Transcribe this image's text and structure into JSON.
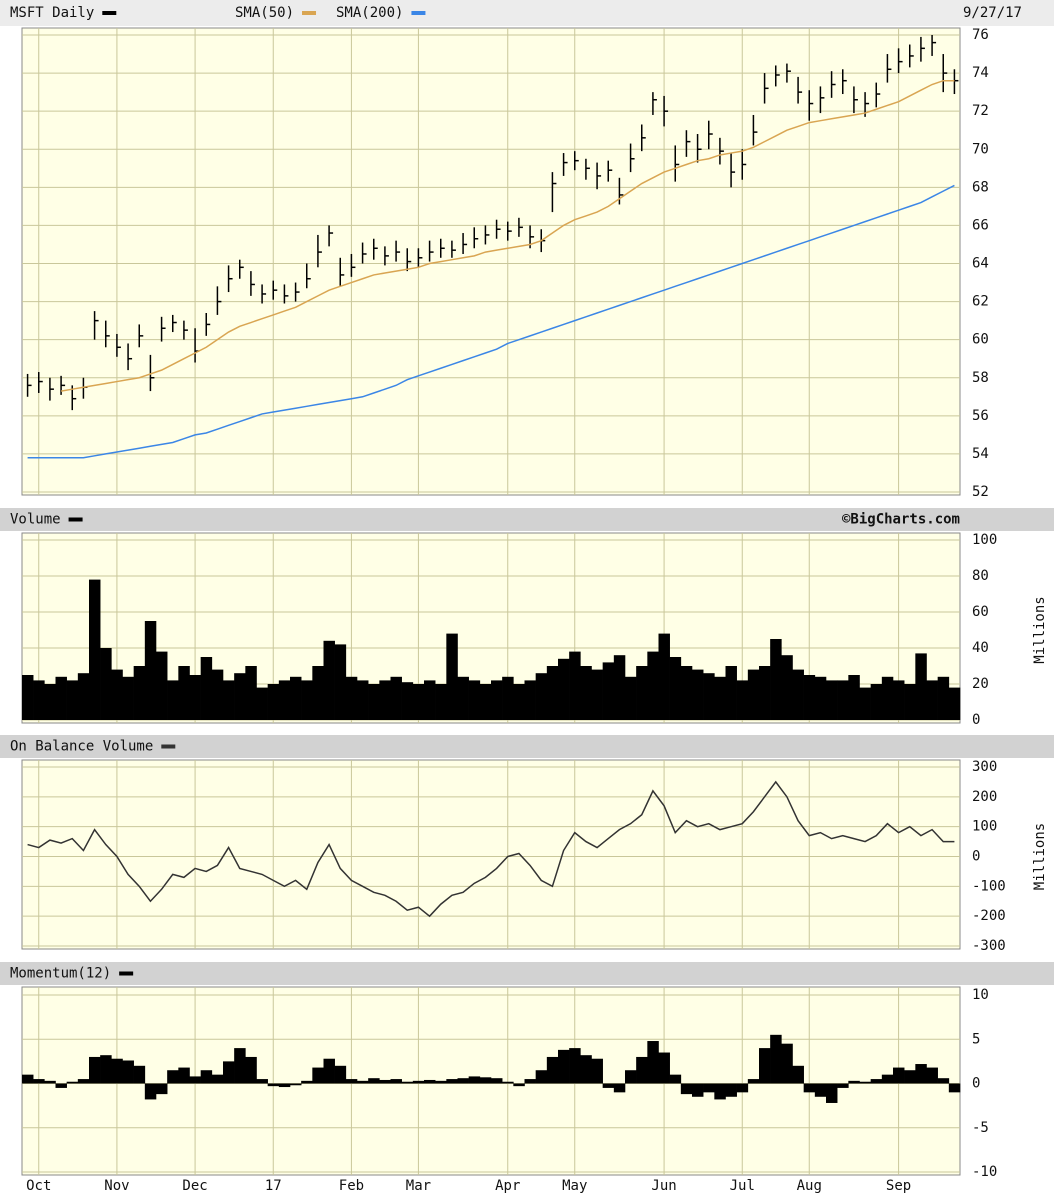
{
  "chart_data": [
    {
      "type": "ohlc",
      "annotation": "9/27/17",
      "ylim": [
        52,
        76
      ],
      "yticks": [
        52,
        54,
        56,
        58,
        60,
        62,
        64,
        66,
        68,
        70,
        72,
        74,
        76
      ],
      "grid": true,
      "series": [
        {
          "name": "MSFT Daily",
          "color": "#000000",
          "values": [
            57.6,
            57.8,
            57.4,
            57.6,
            56.9,
            57.5,
            61.0,
            60.2,
            59.6,
            59.0,
            60.2,
            58.0,
            60.6,
            60.9,
            60.5,
            59.4,
            60.8,
            62.0,
            63.2,
            63.8,
            62.9,
            62.4,
            62.6,
            62.3,
            62.5,
            63.2,
            64.6,
            65.6,
            63.4,
            63.8,
            64.5,
            64.8,
            64.4,
            64.6,
            64.1,
            64.3,
            64.6,
            64.8,
            64.7,
            65.0,
            65.3,
            65.5,
            65.8,
            65.7,
            65.9,
            65.4,
            65.2,
            68.2,
            69.3,
            69.4,
            69.0,
            68.6,
            68.9,
            67.6,
            69.5,
            70.6,
            72.6,
            72.0,
            69.2,
            70.4,
            70.0,
            70.8,
            69.9,
            68.8,
            69.2,
            70.9,
            73.2,
            73.9,
            74.1,
            73.0,
            72.4,
            72.7,
            73.4,
            73.6,
            72.6,
            72.4,
            72.9,
            74.2,
            74.6,
            74.9,
            75.3,
            75.6,
            74.0,
            73.6
          ],
          "high": [
            58.2,
            58.3,
            58.0,
            58.1,
            57.6,
            58.0,
            61.5,
            61.0,
            60.3,
            59.8,
            60.8,
            59.2,
            61.2,
            61.3,
            61.0,
            60.6,
            61.4,
            62.8,
            63.9,
            64.2,
            63.6,
            62.9,
            63.1,
            62.9,
            63.0,
            64.0,
            65.5,
            66.0,
            64.3,
            64.5,
            65.1,
            65.3,
            64.9,
            65.2,
            64.8,
            64.8,
            65.2,
            65.3,
            65.2,
            65.6,
            65.9,
            66.0,
            66.3,
            66.2,
            66.4,
            66.0,
            65.8,
            68.8,
            69.8,
            69.9,
            69.5,
            69.3,
            69.4,
            68.5,
            70.3,
            71.3,
            73.0,
            72.8,
            70.2,
            71.0,
            70.8,
            71.5,
            70.6,
            69.8,
            70.0,
            71.8,
            74.0,
            74.4,
            74.5,
            73.8,
            73.1,
            73.3,
            74.1,
            74.2,
            73.3,
            73.0,
            73.5,
            75.0,
            75.3,
            75.5,
            75.9,
            76.0,
            75.0,
            74.2
          ],
          "low": [
            57.0,
            57.2,
            56.8,
            57.1,
            56.3,
            56.9,
            60.0,
            59.6,
            59.1,
            58.4,
            59.6,
            57.3,
            59.9,
            60.4,
            60.0,
            58.8,
            60.2,
            61.3,
            62.5,
            63.2,
            62.3,
            61.9,
            62.1,
            61.9,
            62.0,
            62.7,
            63.8,
            64.9,
            62.8,
            63.3,
            64.0,
            64.2,
            63.9,
            64.1,
            63.6,
            63.8,
            64.1,
            64.3,
            64.3,
            64.5,
            64.8,
            65.0,
            65.3,
            65.2,
            65.4,
            64.8,
            64.6,
            66.7,
            68.6,
            68.9,
            68.4,
            67.9,
            68.3,
            67.1,
            68.8,
            69.9,
            71.8,
            71.2,
            68.3,
            69.6,
            69.3,
            70.0,
            69.2,
            68.0,
            68.4,
            70.2,
            72.4,
            73.3,
            73.5,
            72.4,
            71.5,
            71.9,
            72.7,
            72.9,
            71.9,
            71.7,
            72.2,
            73.5,
            74.0,
            74.3,
            74.6,
            74.9,
            73.0,
            72.9
          ]
        },
        {
          "name": "SMA(50)",
          "color": "#d9a552",
          "values": [
            null,
            null,
            null,
            57.3,
            57.4,
            57.5,
            57.6,
            57.7,
            57.8,
            57.9,
            58.0,
            58.2,
            58.4,
            58.7,
            59.0,
            59.3,
            59.6,
            60.0,
            60.4,
            60.7,
            60.9,
            61.1,
            61.3,
            61.5,
            61.7,
            62.0,
            62.3,
            62.6,
            62.8,
            63.0,
            63.2,
            63.4,
            63.5,
            63.6,
            63.7,
            63.8,
            64.0,
            64.1,
            64.2,
            64.3,
            64.4,
            64.6,
            64.7,
            64.8,
            64.9,
            65.0,
            65.2,
            65.6,
            66.0,
            66.3,
            66.5,
            66.7,
            67.0,
            67.4,
            67.8,
            68.2,
            68.5,
            68.8,
            69.0,
            69.2,
            69.4,
            69.5,
            69.7,
            69.8,
            69.9,
            70.1,
            70.4,
            70.7,
            71.0,
            71.2,
            71.4,
            71.5,
            71.6,
            71.7,
            71.8,
            71.9,
            72.1,
            72.3,
            72.5,
            72.8,
            73.1,
            73.4,
            73.6,
            73.6
          ]
        },
        {
          "name": "SMA(200)",
          "color": "#3b86e6",
          "values": [
            53.8,
            53.8,
            53.8,
            53.8,
            53.8,
            53.8,
            53.9,
            54.0,
            54.1,
            54.2,
            54.3,
            54.4,
            54.5,
            54.6,
            54.8,
            55.0,
            55.1,
            55.3,
            55.5,
            55.7,
            55.9,
            56.1,
            56.2,
            56.3,
            56.4,
            56.5,
            56.6,
            56.7,
            56.8,
            56.9,
            57.0,
            57.2,
            57.4,
            57.6,
            57.9,
            58.1,
            58.3,
            58.5,
            58.7,
            58.9,
            59.1,
            59.3,
            59.5,
            59.8,
            60.0,
            60.2,
            60.4,
            60.6,
            60.8,
            61.0,
            61.2,
            61.4,
            61.6,
            61.8,
            62.0,
            62.2,
            62.4,
            62.6,
            62.8,
            63.0,
            63.2,
            63.4,
            63.6,
            63.8,
            64.0,
            64.2,
            64.4,
            64.6,
            64.8,
            65.0,
            65.2,
            65.4,
            65.6,
            65.8,
            66.0,
            66.2,
            66.4,
            66.6,
            66.8,
            67.0,
            67.2,
            67.5,
            67.8,
            68.1
          ]
        }
      ]
    },
    {
      "type": "bar",
      "annotation": "©BigCharts.com",
      "y_label": "Millions",
      "ylim": [
        0,
        100
      ],
      "yticks": [
        0,
        20,
        40,
        60,
        80,
        100
      ],
      "grid": true,
      "series": [
        {
          "name": "Volume",
          "color": "#000000",
          "values": [
            25,
            22,
            20,
            24,
            22,
            26,
            78,
            40,
            28,
            24,
            30,
            55,
            38,
            22,
            30,
            25,
            35,
            28,
            22,
            26,
            30,
            18,
            20,
            22,
            24,
            22,
            30,
            44,
            42,
            24,
            22,
            20,
            22,
            24,
            21,
            20,
            22,
            20,
            48,
            24,
            22,
            20,
            22,
            24,
            20,
            22,
            26,
            30,
            34,
            38,
            30,
            28,
            32,
            36,
            24,
            30,
            38,
            48,
            35,
            30,
            28,
            26,
            24,
            30,
            22,
            28,
            30,
            45,
            36,
            28,
            25,
            24,
            22,
            22,
            25,
            18,
            20,
            24,
            22,
            20,
            37,
            22,
            24,
            18
          ]
        }
      ]
    },
    {
      "type": "line",
      "y_label": "Millions",
      "ylim": [
        -300,
        300
      ],
      "yticks": [
        -300,
        -200,
        -100,
        0,
        100,
        200,
        300
      ],
      "grid": true,
      "series": [
        {
          "name": "On Balance Volume",
          "color": "#333333",
          "values": [
            40,
            30,
            55,
            45,
            60,
            20,
            90,
            40,
            0,
            -60,
            -100,
            -150,
            -110,
            -60,
            -70,
            -40,
            -50,
            -30,
            30,
            -40,
            -50,
            -60,
            -80,
            -100,
            -80,
            -110,
            -20,
            40,
            -40,
            -80,
            -100,
            -120,
            -130,
            -150,
            -180,
            -170,
            -200,
            -160,
            -130,
            -120,
            -90,
            -70,
            -40,
            0,
            10,
            -30,
            -80,
            -100,
            20,
            80,
            50,
            30,
            60,
            90,
            110,
            140,
            220,
            170,
            80,
            120,
            100,
            110,
            90,
            100,
            110,
            150,
            200,
            250,
            200,
            120,
            70,
            80,
            60,
            70,
            60,
            50,
            70,
            110,
            80,
            100,
            70,
            90,
            50,
            50
          ]
        }
      ]
    },
    {
      "type": "bar",
      "ylim": [
        -10,
        10
      ],
      "yticks": [
        -10,
        -5,
        0,
        5,
        10
      ],
      "grid": true,
      "categories": [
        null,
        "Oct",
        null,
        null,
        null,
        null,
        null,
        null,
        "Nov",
        null,
        null,
        null,
        null,
        null,
        null,
        "Dec",
        null,
        null,
        null,
        null,
        null,
        null,
        "17",
        null,
        null,
        null,
        null,
        null,
        null,
        "Feb",
        null,
        null,
        null,
        null,
        null,
        "Mar",
        null,
        null,
        null,
        null,
        null,
        null,
        null,
        "Apr",
        null,
        null,
        null,
        null,
        null,
        "May",
        null,
        null,
        null,
        null,
        null,
        null,
        null,
        "Jun",
        null,
        null,
        null,
        null,
        null,
        null,
        "Jul",
        null,
        null,
        null,
        null,
        null,
        "Aug",
        null,
        null,
        null,
        null,
        null,
        null,
        null,
        "Sep",
        null,
        null,
        null,
        null,
        null
      ],
      "series": [
        {
          "name": "Momentum(12)",
          "color": "#000000",
          "values": [
            1.0,
            0.5,
            0.3,
            -0.5,
            0.2,
            0.5,
            3.0,
            3.2,
            2.8,
            2.6,
            2.0,
            -1.8,
            -1.2,
            1.5,
            1.8,
            0.8,
            1.5,
            1.0,
            2.5,
            4.0,
            3.0,
            0.5,
            -0.3,
            -0.4,
            -0.2,
            0.3,
            1.8,
            2.8,
            2.0,
            0.5,
            0.3,
            0.6,
            0.4,
            0.5,
            0.2,
            0.3,
            0.4,
            0.3,
            0.5,
            0.6,
            0.8,
            0.7,
            0.6,
            0.2,
            -0.3,
            0.5,
            1.5,
            3.0,
            3.8,
            4.0,
            3.2,
            2.8,
            -0.5,
            -1.0,
            1.5,
            3.0,
            4.8,
            3.5,
            1.0,
            -1.2,
            -1.5,
            -1.0,
            -1.8,
            -1.5,
            -1.0,
            0.5,
            4.0,
            5.5,
            4.5,
            2.0,
            -1.0,
            -1.5,
            -2.2,
            -0.5,
            0.3,
            0.2,
            0.5,
            1.0,
            1.8,
            1.5,
            2.2,
            1.8,
            0.6,
            -1.0
          ]
        }
      ]
    }
  ]
}
